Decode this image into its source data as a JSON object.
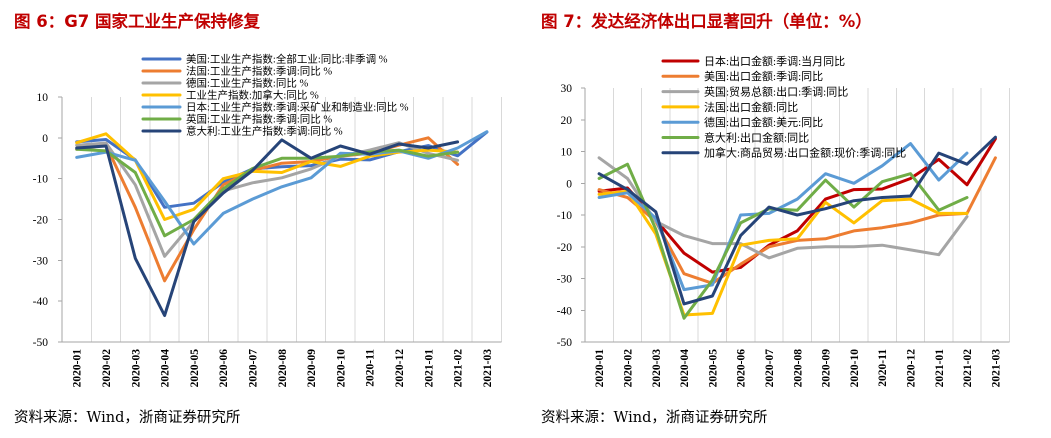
{
  "chart_data": [
    {
      "type": "line",
      "title": "图 6：G7 国家工业生产保持修复",
      "source": "资料来源：Wind，浙商证券研究所",
      "categories": [
        "2020-01",
        "2020-02",
        "2020-03",
        "2020-04",
        "2020-05",
        "2020-06",
        "2020-07",
        "2020-08",
        "2020-09",
        "2020-10",
        "2020-11",
        "2020-12",
        "2021-01",
        "2021-02",
        "2021-03"
      ],
      "ylim": [
        -50,
        10
      ],
      "yticks": [
        10,
        0,
        -10,
        -20,
        -30,
        -40,
        -50
      ],
      "grid": true,
      "legend": "top",
      "series": [
        {
          "name": "美国:工业生产指数:全部工业:同比:非季调 %",
          "color": "#4472C4",
          "values": [
            -1.0,
            -0.4,
            -5.4,
            -17.0,
            -16.0,
            -10.9,
            -7.6,
            -7.1,
            -6.8,
            -5.2,
            -5.4,
            -3.4,
            -1.9,
            -4.4,
            1.4
          ]
        },
        {
          "name": "法国:工业生产指数:季调:同比 %",
          "color": "#ED7D31",
          "values": [
            -2.8,
            -1.8,
            -17.0,
            -35.0,
            -22.5,
            -11.5,
            -8.0,
            -6.2,
            -5.8,
            -4.5,
            -3.8,
            -1.8,
            0.0,
            -6.5,
            null
          ]
        },
        {
          "name": "德国:工业生产指数:同比 %",
          "color": "#A5A5A5",
          "values": [
            -1.8,
            -1.3,
            -11.5,
            -29.0,
            -20.5,
            -13.0,
            -11.0,
            -9.8,
            -7.6,
            -4.5,
            -3.0,
            -1.2,
            -3.8,
            -5.5,
            null
          ]
        },
        {
          "name": "工业生产指数:加拿大:同比 %",
          "color": "#FFC000",
          "values": [
            -1.2,
            1.0,
            -5.5,
            -20.0,
            -17.5,
            -10.0,
            -8.2,
            -8.5,
            -5.8,
            -7.0,
            -4.5,
            -3.5,
            -3.0,
            -3.5,
            null
          ]
        },
        {
          "name": "日本:工业生产指数:季调:采矿业和制造业:同比 %",
          "color": "#5B9BD5",
          "values": [
            -4.8,
            -3.5,
            -5.5,
            -15.5,
            -26.0,
            -18.5,
            -15.0,
            -12.0,
            -9.8,
            -3.8,
            -4.0,
            -3.2,
            -5.0,
            -2.5,
            1.5
          ]
        },
        {
          "name": "英国:工业生产指数:季调:同比 %",
          "color": "#70AD47",
          "values": [
            -2.8,
            -3.2,
            -8.5,
            -24.0,
            -20.0,
            -12.5,
            -7.5,
            -5.0,
            -5.0,
            -4.5,
            -3.5,
            -3.0,
            -4.5,
            -3.5,
            null
          ]
        },
        {
          "name": "意大利:工业生产指数:季调:同比 %",
          "color": "#264478",
          "values": [
            -2.5,
            -2.0,
            -29.5,
            -43.5,
            -20.5,
            -13.5,
            -8.0,
            -0.5,
            -5.0,
            -2.0,
            -4.0,
            -1.5,
            -2.5,
            -1.0,
            null
          ]
        }
      ]
    },
    {
      "type": "line",
      "title": "图 7：发达经济体出口显著回升（单位：%）",
      "source": "资料来源：Wind，浙商证券研究所",
      "categories": [
        "2020-01",
        "2020-02",
        "2020-03",
        "2020-04",
        "2020-05",
        "2020-06",
        "2020-07",
        "2020-08",
        "2020-09",
        "2020-10",
        "2020-11",
        "2020-12",
        "2021-01",
        "2021-02",
        "2021-03"
      ],
      "ylim": [
        -50,
        30
      ],
      "yticks": [
        30,
        20,
        10,
        0,
        -10,
        -20,
        -30,
        -40,
        -50
      ],
      "grid": true,
      "legend": "top",
      "series": [
        {
          "name": "日本:出口金额:季调:当月同比",
          "color": "#C00000",
          "values": [
            -2.5,
            -1.5,
            -11.5,
            -22.0,
            -28.0,
            -26.5,
            -19.5,
            -15.0,
            -5.0,
            -2.0,
            -1.8,
            1.5,
            7.5,
            -0.5,
            14.0
          ]
        },
        {
          "name": "美国:出口金额:季调:同比",
          "color": "#ED7D31",
          "values": [
            -2.0,
            -4.5,
            -12.0,
            -28.5,
            -31.5,
            -25.5,
            -20.0,
            -18.0,
            -17.5,
            -15.0,
            -14.0,
            -12.5,
            -10.0,
            -9.5,
            8.0
          ]
        },
        {
          "name": "英国:贸易总额:出口:季调:同比",
          "color": "#A5A5A5",
          "values": [
            8.0,
            1.5,
            -12.0,
            -16.5,
            -19.0,
            -19.0,
            -23.5,
            -20.5,
            -20.0,
            -20.0,
            -19.5,
            -21.0,
            -22.5,
            -10.5,
            null
          ]
        },
        {
          "name": "法国:出口金额:同比",
          "color": "#FFC000",
          "values": [
            -3.5,
            -2.5,
            -16.0,
            -41.5,
            -41.0,
            -19.5,
            -18.0,
            -17.5,
            -6.0,
            -12.5,
            -5.5,
            -5.0,
            -9.5,
            -9.5,
            null
          ]
        },
        {
          "name": "德国:出口金额:美元:同比",
          "color": "#5B9BD5",
          "values": [
            -4.5,
            -3.0,
            -11.0,
            -33.5,
            -32.0,
            -10.0,
            -9.5,
            -5.0,
            3.0,
            0.0,
            5.5,
            12.5,
            1.0,
            9.5,
            null
          ]
        },
        {
          "name": "意大利:出口金额:同比",
          "color": "#70AD47",
          "values": [
            1.5,
            6.0,
            -14.5,
            -42.5,
            -30.5,
            -12.5,
            -8.0,
            -8.5,
            1.0,
            -7.5,
            0.5,
            3.0,
            -8.5,
            -4.5,
            null
          ]
        },
        {
          "name": "加拿大:商品贸易:出口金额:现价:季调:同比",
          "color": "#264478",
          "values": [
            3.0,
            -2.0,
            -9.0,
            -38.0,
            -35.5,
            -16.5,
            -7.5,
            -10.0,
            -8.0,
            -5.5,
            -4.5,
            -4.0,
            9.5,
            6.0,
            14.5
          ]
        }
      ]
    }
  ]
}
